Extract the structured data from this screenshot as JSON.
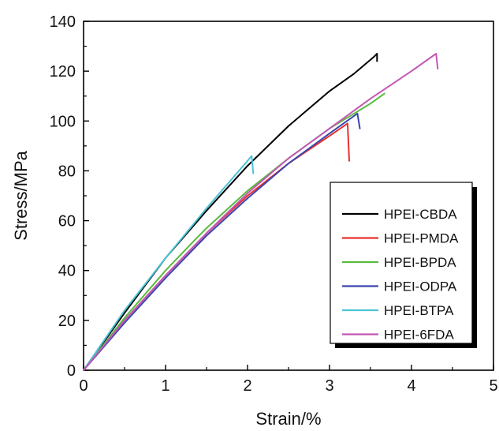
{
  "chart_data": {
    "type": "line",
    "xlabel": "Strain/%",
    "ylabel": "Stress/MPa",
    "xlim": [
      0,
      5
    ],
    "ylim": [
      0,
      140
    ],
    "xticks": [
      0,
      1,
      2,
      3,
      4,
      5
    ],
    "yticks": [
      0,
      20,
      40,
      60,
      80,
      100,
      120,
      140
    ],
    "grid": false,
    "legend_position": "lower-right",
    "series": [
      {
        "name": "HPEI-CBDA",
        "color": "#000000",
        "x": [
          0,
          0.5,
          1.0,
          1.5,
          2.0,
          2.5,
          3.0,
          3.3,
          3.55,
          3.58,
          3.58
        ],
        "y": [
          0,
          23,
          45,
          64,
          82,
          98,
          112,
          119,
          126,
          127,
          124
        ]
      },
      {
        "name": "HPEI-PMDA",
        "color": "#e8302f",
        "x": [
          0,
          0.5,
          1.0,
          1.5,
          2.0,
          2.5,
          3.0,
          3.22,
          3.24
        ],
        "y": [
          0,
          20,
          38,
          55,
          70,
          83,
          94,
          99,
          84
        ]
      },
      {
        "name": "HPEI-BPDA",
        "color": "#58bb3e",
        "x": [
          0,
          0.5,
          1.0,
          1.35,
          1.5,
          2.0,
          2.5,
          3.0,
          3.5,
          3.67
        ],
        "y": [
          0,
          21,
          40,
          52,
          57,
          72,
          85,
          97,
          107,
          111
        ]
      },
      {
        "name": "HPEI-ODPA",
        "color": "#3b46ad",
        "x": [
          0,
          0.5,
          1.0,
          1.5,
          2.0,
          2.5,
          3.0,
          3.34,
          3.37
        ],
        "y": [
          0,
          19,
          37,
          54,
          69,
          83,
          95,
          103,
          97
        ]
      },
      {
        "name": "HPEI-BTPA",
        "color": "#4dc3d6",
        "x": [
          0,
          0.5,
          1.0,
          1.5,
          2.0,
          2.05,
          2.07
        ],
        "y": [
          0,
          24,
          45,
          65,
          84,
          86,
          79
        ]
      },
      {
        "name": "HPEI-6FDA",
        "color": "#c357b5",
        "x": [
          0,
          0.5,
          1.0,
          1.5,
          2.0,
          2.5,
          3.0,
          3.5,
          4.0,
          4.3,
          4.32
        ],
        "y": [
          0,
          20,
          38,
          55,
          71,
          85,
          97,
          109,
          120,
          127,
          121
        ]
      }
    ]
  }
}
